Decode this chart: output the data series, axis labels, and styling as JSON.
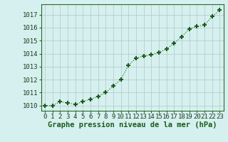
{
  "x": [
    0,
    1,
    2,
    3,
    4,
    5,
    6,
    7,
    8,
    9,
    10,
    11,
    12,
    13,
    14,
    15,
    16,
    17,
    18,
    19,
    20,
    21,
    22,
    23
  ],
  "y": [
    1010.0,
    1010.0,
    1010.3,
    1010.2,
    1010.1,
    1010.3,
    1010.5,
    1010.7,
    1011.0,
    1011.5,
    1012.0,
    1013.1,
    1013.65,
    1013.8,
    1013.9,
    1014.1,
    1014.35,
    1014.8,
    1015.3,
    1015.9,
    1016.1,
    1016.2,
    1016.85,
    1017.35
  ],
  "line_color": "#1a5c1a",
  "marker": "+",
  "marker_size": 5,
  "marker_lw": 1.5,
  "bg_color": "#d6f0ef",
  "grid_color": "#b0c8c8",
  "ylabel_ticks": [
    1010,
    1011,
    1012,
    1013,
    1014,
    1015,
    1016,
    1017
  ],
  "xlabel": "Graphe pression niveau de la mer (hPa)",
  "ylim": [
    1009.6,
    1017.8
  ],
  "xlim": [
    -0.5,
    23.5
  ],
  "tick_fontsize": 6.5,
  "xlabel_fontsize": 7.5
}
